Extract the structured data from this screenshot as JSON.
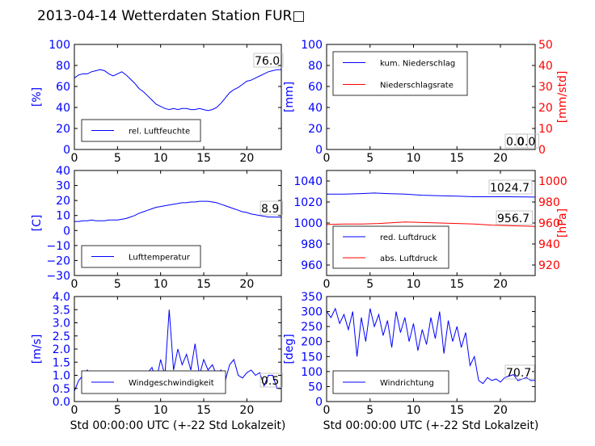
{
  "page": {
    "title": "2013-04-14 Wetterdaten Station FUR",
    "title_suffix_glyph": "□"
  },
  "colors": {
    "left_axis": "#0000ff",
    "right_axis": "#ff0000",
    "series1": "#0000ff",
    "series2": "#ff0000",
    "frame": "#000000"
  },
  "chart_data": [
    {
      "id": "humidity",
      "type": "line",
      "title": "",
      "xlabel": "",
      "ylabel": "[%]",
      "xlim": [
        0,
        24
      ],
      "ylim": [
        0,
        100
      ],
      "xticks": [
        "0",
        "5",
        "10",
        "15",
        "20"
      ],
      "yticks": [
        "0",
        "20",
        "40",
        "60",
        "80",
        "100"
      ],
      "legend_placement": "lower-left",
      "series": [
        {
          "name": "rel. Luftfeuchte",
          "axis": "left",
          "x": [
            0,
            0.5,
            1,
            1.5,
            2,
            2.5,
            3,
            3.5,
            4,
            4.5,
            5,
            5.5,
            6,
            6.5,
            7,
            7.5,
            8,
            8.5,
            9,
            9.5,
            10,
            10.5,
            11,
            11.5,
            12,
            12.5,
            13,
            13.5,
            14,
            14.5,
            15,
            15.5,
            16,
            16.5,
            17,
            17.5,
            18,
            18.5,
            19,
            19.5,
            20,
            20.5,
            21,
            21.5,
            22,
            22.5,
            23,
            23.5,
            24
          ],
          "y": [
            68,
            71,
            72,
            72,
            74,
            75,
            76,
            75,
            72,
            70,
            72,
            74,
            71,
            67,
            63,
            58,
            55,
            51,
            47,
            43,
            41,
            39,
            38,
            39,
            38,
            39,
            39,
            38,
            38,
            39,
            38,
            37,
            38,
            40,
            44,
            49,
            54,
            57,
            59,
            62,
            65,
            66,
            68,
            70,
            72,
            74,
            75,
            76,
            76
          ]
        }
      ],
      "annotations": [
        "76.0"
      ],
      "grid": false
    },
    {
      "id": "precip",
      "type": "line",
      "title": "",
      "xlabel": "",
      "ylabel": "[mm]",
      "ylabel_right": "[mm/std]",
      "xlim": [
        0,
        24
      ],
      "ylim": [
        0,
        100
      ],
      "ylim_right": [
        0,
        50
      ],
      "xticks": [
        "0",
        "5",
        "10",
        "15",
        "20"
      ],
      "yticks": [
        "0",
        "20",
        "40",
        "60",
        "80",
        "100"
      ],
      "yticks_right": [
        "0",
        "10",
        "20",
        "30",
        "40",
        "50"
      ],
      "legend_placement": "upper-left",
      "series": [
        {
          "name": "kum. Niederschlag",
          "axis": "left",
          "x": [
            0,
            24
          ],
          "y": [
            0,
            0
          ]
        },
        {
          "name": "Niederschlagsrate",
          "axis": "right",
          "x": [
            0,
            24
          ],
          "y": [
            0,
            0
          ]
        }
      ],
      "annotations": [
        "0.0",
        "0.0"
      ],
      "grid": false
    },
    {
      "id": "temperature",
      "type": "line",
      "title": "",
      "xlabel": "",
      "ylabel": "[C]",
      "xlim": [
        0,
        24
      ],
      "ylim": [
        -30,
        40
      ],
      "xticks": [
        "0",
        "5",
        "10",
        "15",
        "20"
      ],
      "yticks": [
        "−30",
        "−20",
        "−10",
        "0",
        "10",
        "20",
        "30",
        "40"
      ],
      "legend_placement": "lower-left",
      "series": [
        {
          "name": "Lufttemperatur",
          "axis": "left",
          "x": [
            0,
            0.5,
            1,
            1.5,
            2,
            2.5,
            3,
            3.5,
            4,
            4.5,
            5,
            5.5,
            6,
            6.5,
            7,
            7.5,
            8,
            8.5,
            9,
            9.5,
            10,
            10.5,
            11,
            11.5,
            12,
            12.5,
            13,
            13.5,
            14,
            14.5,
            15,
            15.5,
            16,
            16.5,
            17,
            17.5,
            18,
            18.5,
            19,
            19.5,
            20,
            20.5,
            21,
            21.5,
            22,
            22.5,
            23,
            23.5,
            24
          ],
          "y": [
            6,
            6,
            6.5,
            6.5,
            7,
            6.5,
            6.5,
            6.5,
            7,
            7,
            7,
            7.5,
            8,
            9,
            10,
            11.5,
            12.5,
            13.5,
            14.5,
            15.5,
            16,
            16.5,
            17,
            17.5,
            18,
            18.5,
            18.5,
            19,
            19,
            19.5,
            19.5,
            19.5,
            19,
            18.5,
            17.5,
            16.5,
            15.5,
            14.5,
            13.5,
            12.5,
            12,
            11,
            10.5,
            10,
            9.5,
            9,
            9,
            8.9,
            8.9
          ]
        }
      ],
      "annotations": [
        "8.9"
      ],
      "grid": false
    },
    {
      "id": "pressure",
      "type": "line",
      "title": "",
      "xlabel": "",
      "ylabel": "",
      "ylabel_right": "[hPa]",
      "xlim": [
        0,
        24
      ],
      "ylim": [
        950,
        1050
      ],
      "ylim_right": [
        910,
        1010
      ],
      "xticks": [
        "0",
        "5",
        "10",
        "15",
        "20"
      ],
      "yticks": [
        "960",
        "980",
        "1000",
        "1020",
        "1040"
      ],
      "yticks_right": [
        "920",
        "940",
        "960",
        "980",
        "1000"
      ],
      "legend_placement": "lower-left",
      "series": [
        {
          "name": "red. Luftdruck",
          "axis": "left",
          "x": [
            0,
            2,
            4,
            5.5,
            7,
            9,
            11,
            13,
            15,
            17,
            19,
            21,
            23,
            24
          ],
          "y": [
            1027.5,
            1027.5,
            1028,
            1028.5,
            1028,
            1027.5,
            1026.5,
            1026,
            1025.5,
            1025,
            1025,
            1025,
            1024.8,
            1024.7
          ]
        },
        {
          "name": "abs. Luftdruck",
          "axis": "left",
          "x": [
            0,
            2,
            4,
            6,
            8,
            9,
            11,
            13,
            15,
            17,
            19,
            21,
            23,
            24
          ],
          "y": [
            998.5,
            999,
            999,
            999.5,
            1000.5,
            1001,
            1000.5,
            1000,
            999.5,
            999,
            998,
            997.5,
            997,
            996.8
          ]
        }
      ],
      "annotations": [
        "1024.7",
        "956.7"
      ],
      "grid": false
    },
    {
      "id": "windspeed",
      "type": "line",
      "title": "",
      "xlabel": "Std 00:00:00 UTC (+-22 Std Lokalzeit)",
      "ylabel": "[m/s]",
      "xlim": [
        0,
        24
      ],
      "ylim": [
        0,
        4
      ],
      "xticks": [
        "0",
        "5",
        "10",
        "15",
        "20"
      ],
      "yticks": [
        "0.0",
        "0.5",
        "1.0",
        "1.5",
        "2.0",
        "2.5",
        "3.0",
        "3.5",
        "4.0"
      ],
      "legend_placement": "lower-center",
      "series": [
        {
          "name": "Windgeschwindigkeit",
          "axis": "left",
          "x": [
            0,
            0.5,
            1,
            1.5,
            2,
            2.5,
            3,
            3.5,
            4,
            4.5,
            5,
            5.5,
            6,
            6.5,
            7,
            7.5,
            8,
            8.5,
            9,
            9.5,
            10,
            10.5,
            11,
            11.5,
            12,
            12.5,
            13,
            13.5,
            14,
            14.5,
            15,
            15.5,
            16,
            16.5,
            17,
            17.5,
            18,
            18.5,
            19,
            19.5,
            20,
            20.5,
            21,
            21.5,
            22,
            22.5,
            23,
            23.5,
            24
          ],
          "y": [
            0.4,
            0.8,
            1.0,
            1.2,
            0.6,
            0.9,
            0.5,
            0.8,
            1.0,
            0.6,
            0.4,
            0.7,
            0.9,
            0.5,
            0.8,
            0.6,
            0.9,
            1.1,
            1.3,
            0.8,
            1.6,
            1.0,
            3.5,
            1.2,
            2.0,
            1.4,
            1.8,
            1.2,
            2.2,
            1.0,
            1.6,
            1.2,
            1.4,
            1.0,
            1.2,
            0.8,
            1.4,
            1.6,
            1.0,
            0.9,
            1.1,
            1.2,
            1.0,
            1.1,
            0.6,
            1.0,
            1.0,
            0.5,
            0.5
          ]
        }
      ],
      "annotations": [
        "0.5"
      ],
      "grid": false
    },
    {
      "id": "winddir",
      "type": "line",
      "title": "",
      "xlabel": "Std 00:00:00 UTC (+-22 Std Lokalzeit)",
      "ylabel": "[deg]",
      "xlim": [
        0,
        24
      ],
      "ylim": [
        0,
        350
      ],
      "xticks": [
        "0",
        "5",
        "10",
        "15",
        "20"
      ],
      "yticks": [
        "0",
        "50",
        "100",
        "150",
        "200",
        "250",
        "300",
        "350"
      ],
      "legend_placement": "lower-left",
      "series": [
        {
          "name": "Windrichtung",
          "axis": "left",
          "x": [
            0,
            0.5,
            1,
            1.5,
            2,
            2.5,
            3,
            3.5,
            4,
            4.5,
            5,
            5.5,
            6,
            6.5,
            7,
            7.5,
            8,
            8.5,
            9,
            9.5,
            10,
            10.5,
            11,
            11.5,
            12,
            12.5,
            13,
            13.5,
            14,
            14.5,
            15,
            15.5,
            16,
            16.5,
            17,
            17.5,
            18,
            18.5,
            19,
            19.5,
            20,
            20.5,
            21,
            21.5,
            22,
            22.5,
            23,
            23.5,
            24
          ],
          "y": [
            300,
            280,
            310,
            260,
            290,
            240,
            300,
            150,
            280,
            200,
            310,
            250,
            290,
            220,
            270,
            180,
            300,
            230,
            280,
            200,
            260,
            170,
            240,
            190,
            280,
            210,
            300,
            160,
            270,
            200,
            250,
            180,
            230,
            120,
            150,
            70,
            60,
            80,
            70,
            75,
            65,
            80,
            85,
            90,
            70,
            75,
            80,
            70,
            70.7
          ]
        }
      ],
      "annotations": [
        "70.7"
      ],
      "grid": false
    }
  ]
}
